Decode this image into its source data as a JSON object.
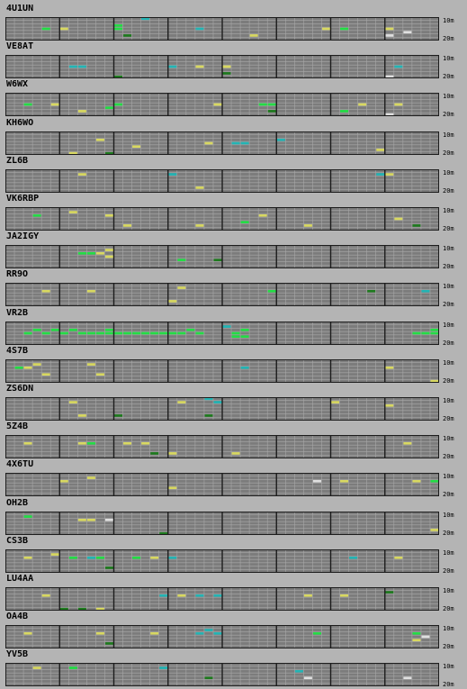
{
  "bands": {
    "top_label": "10m",
    "bottom_label": "20m"
  },
  "colors": {
    "background": "#b4b4b4",
    "grid_fill": "#7c7c7c",
    "grid_line": "#a8a8a8",
    "hour_divider": "#1c1c1c",
    "green_bright": "#22dd44",
    "green_dark": "#1e7a1e",
    "yellow": "#d8d860",
    "cyan": "#22b4b4",
    "white": "#e0e0e0"
  },
  "stations": [
    {
      "call": "4U1UN",
      "spots": [
        [
          4,
          3,
          "g"
        ],
        [
          6,
          3,
          "y"
        ],
        [
          12,
          2,
          "g"
        ],
        [
          12,
          3,
          "g"
        ],
        [
          15,
          0,
          "c"
        ],
        [
          13,
          5,
          "d"
        ],
        [
          21,
          3,
          "c"
        ],
        [
          27,
          5,
          "y"
        ],
        [
          35,
          3,
          "y"
        ],
        [
          37,
          3,
          "g"
        ],
        [
          42,
          3,
          "y"
        ],
        [
          44,
          4,
          "w"
        ],
        [
          42,
          5,
          "w"
        ]
      ]
    },
    {
      "call": "VE8AT",
      "spots": [
        [
          7,
          3,
          "c"
        ],
        [
          8,
          3,
          "c"
        ],
        [
          12,
          6,
          "d"
        ],
        [
          18,
          3,
          "c"
        ],
        [
          21,
          3,
          "y"
        ],
        [
          24,
          3,
          "y"
        ],
        [
          24,
          5,
          "d"
        ],
        [
          43,
          3,
          "c"
        ],
        [
          42,
          6,
          "w"
        ]
      ]
    },
    {
      "call": "W6WX",
      "spots": [
        [
          2,
          3,
          "g"
        ],
        [
          5,
          3,
          "y"
        ],
        [
          8,
          5,
          "y"
        ],
        [
          11,
          4,
          "g"
        ],
        [
          12,
          3,
          "g"
        ],
        [
          23,
          3,
          "y"
        ],
        [
          28,
          3,
          "g"
        ],
        [
          29,
          3,
          "g"
        ],
        [
          29,
          5,
          "d"
        ],
        [
          37,
          5,
          "g"
        ],
        [
          39,
          3,
          "y"
        ],
        [
          43,
          3,
          "y"
        ],
        [
          42,
          6,
          "w"
        ]
      ]
    },
    {
      "call": "KH6WO",
      "spots": [
        [
          10,
          2,
          "y"
        ],
        [
          14,
          4,
          "y"
        ],
        [
          7,
          6,
          "y"
        ],
        [
          11,
          6,
          "d"
        ],
        [
          22,
          3,
          "y"
        ],
        [
          25,
          3,
          "c"
        ],
        [
          26,
          3,
          "c"
        ],
        [
          30,
          2,
          "c"
        ],
        [
          41,
          5,
          "y"
        ]
      ]
    },
    {
      "call": "ZL6B",
      "spots": [
        [
          8,
          1,
          "y"
        ],
        [
          18,
          1,
          "c"
        ],
        [
          21,
          5,
          "y"
        ],
        [
          41,
          1,
          "c"
        ],
        [
          42,
          1,
          "y"
        ]
      ]
    },
    {
      "call": "VK6RBP",
      "spots": [
        [
          3,
          2,
          "g"
        ],
        [
          7,
          1,
          "y"
        ],
        [
          11,
          2,
          "y"
        ],
        [
          13,
          5,
          "y"
        ],
        [
          21,
          5,
          "y"
        ],
        [
          26,
          4,
          "g"
        ],
        [
          28,
          2,
          "y"
        ],
        [
          33,
          5,
          "y"
        ],
        [
          43,
          3,
          "y"
        ],
        [
          45,
          5,
          "d"
        ]
      ]
    },
    {
      "call": "JA2IGY",
      "spots": [
        [
          8,
          2,
          "g"
        ],
        [
          9,
          2,
          "g"
        ],
        [
          10,
          2,
          "y"
        ],
        [
          11,
          1,
          "y"
        ],
        [
          11,
          3,
          "y"
        ],
        [
          19,
          4,
          "g"
        ],
        [
          23,
          4,
          "d"
        ]
      ]
    },
    {
      "call": "RR9O",
      "spots": [
        [
          4,
          2,
          "y"
        ],
        [
          9,
          2,
          "y"
        ],
        [
          19,
          1,
          "y"
        ],
        [
          18,
          5,
          "y"
        ],
        [
          29,
          2,
          "g"
        ],
        [
          40,
          2,
          "d"
        ],
        [
          46,
          2,
          "c"
        ]
      ]
    },
    {
      "call": "VR2B",
      "spots": [
        [
          2,
          3,
          "g"
        ],
        [
          3,
          2,
          "g"
        ],
        [
          4,
          3,
          "g"
        ],
        [
          5,
          2,
          "g"
        ],
        [
          6,
          3,
          "g"
        ],
        [
          7,
          2,
          "g"
        ],
        [
          8,
          3,
          "g"
        ],
        [
          9,
          3,
          "g"
        ],
        [
          10,
          3,
          "g"
        ],
        [
          11,
          2,
          "g"
        ],
        [
          11,
          3,
          "g"
        ],
        [
          12,
          3,
          "g"
        ],
        [
          13,
          3,
          "g"
        ],
        [
          14,
          3,
          "g"
        ],
        [
          15,
          3,
          "g"
        ],
        [
          16,
          3,
          "g"
        ],
        [
          17,
          3,
          "g"
        ],
        [
          18,
          3,
          "g"
        ],
        [
          19,
          3,
          "g"
        ],
        [
          20,
          2,
          "g"
        ],
        [
          21,
          3,
          "g"
        ],
        [
          24,
          1,
          "c"
        ],
        [
          25,
          3,
          "g"
        ],
        [
          25,
          4,
          "g"
        ],
        [
          26,
          2,
          "g"
        ],
        [
          26,
          4,
          "g"
        ],
        [
          45,
          3,
          "g"
        ],
        [
          46,
          3,
          "g"
        ],
        [
          47,
          3,
          "g"
        ],
        [
          47,
          2,
          "g"
        ]
      ]
    },
    {
      "call": "4S7B",
      "spots": [
        [
          1,
          2,
          "g"
        ],
        [
          2,
          2,
          "y"
        ],
        [
          3,
          1,
          "y"
        ],
        [
          4,
          4,
          "y"
        ],
        [
          9,
          1,
          "y"
        ],
        [
          10,
          4,
          "y"
        ],
        [
          26,
          2,
          "c"
        ],
        [
          42,
          2,
          "y"
        ],
        [
          47,
          6,
          "y"
        ]
      ]
    },
    {
      "call": "ZS6DN",
      "spots": [
        [
          7,
          1,
          "y"
        ],
        [
          8,
          5,
          "y"
        ],
        [
          12,
          5,
          "d"
        ],
        [
          19,
          1,
          "y"
        ],
        [
          22,
          0,
          "c"
        ],
        [
          23,
          1,
          "c"
        ],
        [
          22,
          5,
          "d"
        ],
        [
          36,
          1,
          "y"
        ],
        [
          42,
          2,
          "y"
        ]
      ]
    },
    {
      "call": "5Z4B",
      "spots": [
        [
          2,
          2,
          "y"
        ],
        [
          8,
          2,
          "y"
        ],
        [
          9,
          2,
          "g"
        ],
        [
          13,
          2,
          "y"
        ],
        [
          15,
          2,
          "y"
        ],
        [
          16,
          5,
          "d"
        ],
        [
          18,
          5,
          "y"
        ],
        [
          25,
          5,
          "y"
        ],
        [
          44,
          2,
          "y"
        ]
      ]
    },
    {
      "call": "4X6TU",
      "spots": [
        [
          6,
          2,
          "y"
        ],
        [
          9,
          1,
          "y"
        ],
        [
          18,
          4,
          "y"
        ],
        [
          34,
          2,
          "w"
        ],
        [
          37,
          2,
          "y"
        ],
        [
          45,
          2,
          "y"
        ],
        [
          47,
          2,
          "g"
        ]
      ]
    },
    {
      "call": "OH2B",
      "spots": [
        [
          2,
          1,
          "g"
        ],
        [
          8,
          2,
          "y"
        ],
        [
          9,
          2,
          "y"
        ],
        [
          11,
          2,
          "w"
        ],
        [
          17,
          6,
          "d"
        ],
        [
          47,
          5,
          "y"
        ]
      ]
    },
    {
      "call": "CS3B",
      "spots": [
        [
          2,
          2,
          "y"
        ],
        [
          5,
          1,
          "y"
        ],
        [
          7,
          2,
          "g"
        ],
        [
          9,
          2,
          "c"
        ],
        [
          10,
          2,
          "g"
        ],
        [
          11,
          5,
          "d"
        ],
        [
          14,
          2,
          "g"
        ],
        [
          16,
          2,
          "y"
        ],
        [
          18,
          2,
          "c"
        ],
        [
          38,
          2,
          "c"
        ],
        [
          43,
          2,
          "y"
        ]
      ]
    },
    {
      "call": "LU4AA",
      "spots": [
        [
          4,
          2,
          "y"
        ],
        [
          6,
          6,
          "d"
        ],
        [
          8,
          6,
          "d"
        ],
        [
          10,
          6,
          "y"
        ],
        [
          17,
          2,
          "c"
        ],
        [
          19,
          2,
          "y"
        ],
        [
          21,
          2,
          "c"
        ],
        [
          23,
          2,
          "c"
        ],
        [
          33,
          2,
          "y"
        ],
        [
          37,
          2,
          "y"
        ],
        [
          42,
          1,
          "d"
        ]
      ]
    },
    {
      "call": "OA4B",
      "spots": [
        [
          2,
          2,
          "y"
        ],
        [
          10,
          2,
          "y"
        ],
        [
          11,
          5,
          "d"
        ],
        [
          16,
          2,
          "y"
        ],
        [
          21,
          2,
          "c"
        ],
        [
          22,
          1,
          "c"
        ],
        [
          23,
          2,
          "c"
        ],
        [
          34,
          2,
          "g"
        ],
        [
          45,
          2,
          "g"
        ],
        [
          45,
          4,
          "y"
        ],
        [
          46,
          3,
          "w"
        ]
      ]
    },
    {
      "call": "YV5B",
      "spots": [
        [
          3,
          1,
          "y"
        ],
        [
          7,
          1,
          "g"
        ],
        [
          17,
          1,
          "c"
        ],
        [
          22,
          4,
          "d"
        ],
        [
          32,
          2,
          "c"
        ],
        [
          33,
          4,
          "w"
        ],
        [
          44,
          4,
          "w"
        ]
      ]
    }
  ]
}
